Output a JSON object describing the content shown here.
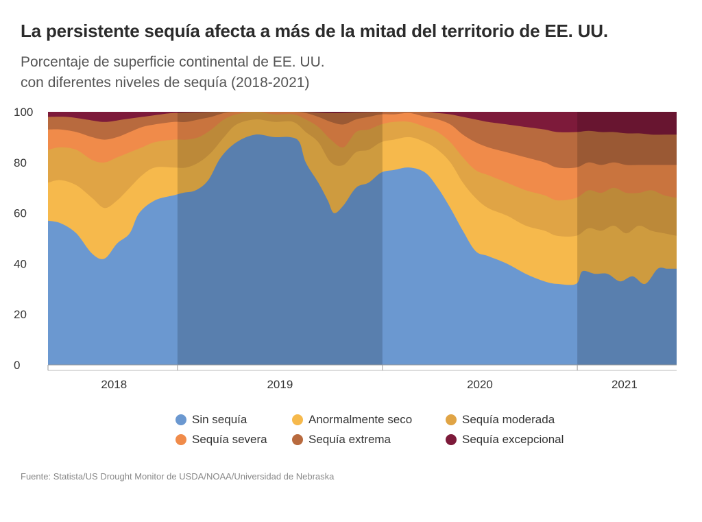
{
  "header": {
    "title": "La persistente sequía afecta a más de la mitad del territorio de EE. UU.",
    "subtitle_line1": "Porcentaje de superficie continental de EE. UU.",
    "subtitle_line2": "con diferentes niveles de sequía (2018-2021)"
  },
  "footer": {
    "source": "Fuente: Statista/US Drought Monitor de USDA/NOAA/Universidad de Nebraska"
  },
  "chart_data": {
    "type": "area",
    "stacking": "cumulative",
    "x_label": "",
    "y_label": "",
    "ylim": [
      0,
      100
    ],
    "y_ticks": [
      "0",
      "20",
      "40",
      "60",
      "80",
      "100"
    ],
    "x_ticks": [
      {
        "label": "2018",
        "t": 0.105
      },
      {
        "label": "2019",
        "t": 0.369
      },
      {
        "label": "2020",
        "t": 0.687
      },
      {
        "label": "2021",
        "t": 0.917
      }
    ],
    "year_bands": [
      {
        "year": "2018",
        "start": 0.0,
        "end": 0.206
      },
      {
        "year": "2019",
        "start": 0.206,
        "end": 0.532
      },
      {
        "year": "2020",
        "start": 0.532,
        "end": 0.842
      },
      {
        "year": "2021",
        "start": 0.842,
        "end": 1.0
      }
    ],
    "legend_position": "bottom",
    "series": [
      {
        "name": "Sin sequía",
        "color": "#6b98d0",
        "values": [
          [
            0,
            57
          ],
          [
            0.02,
            56
          ],
          [
            0.045,
            52
          ],
          [
            0.07,
            44
          ],
          [
            0.09,
            42
          ],
          [
            0.11,
            48
          ],
          [
            0.13,
            52
          ],
          [
            0.145,
            60
          ],
          [
            0.17,
            65
          ],
          [
            0.2,
            67
          ],
          [
            0.215,
            68
          ],
          [
            0.235,
            69
          ],
          [
            0.255,
            73
          ],
          [
            0.275,
            82
          ],
          [
            0.3,
            88
          ],
          [
            0.33,
            91
          ],
          [
            0.36,
            90
          ],
          [
            0.385,
            90
          ],
          [
            0.4,
            88
          ],
          [
            0.41,
            80
          ],
          [
            0.43,
            72
          ],
          [
            0.445,
            65
          ],
          [
            0.455,
            60
          ],
          [
            0.47,
            63
          ],
          [
            0.49,
            70
          ],
          [
            0.51,
            72
          ],
          [
            0.53,
            76
          ],
          [
            0.55,
            77
          ],
          [
            0.575,
            78
          ],
          [
            0.6,
            76
          ],
          [
            0.62,
            70
          ],
          [
            0.64,
            62
          ],
          [
            0.66,
            53
          ],
          [
            0.68,
            45
          ],
          [
            0.7,
            43
          ],
          [
            0.73,
            40
          ],
          [
            0.76,
            36
          ],
          [
            0.79,
            33
          ],
          [
            0.81,
            32
          ],
          [
            0.84,
            32
          ],
          [
            0.85,
            37
          ],
          [
            0.87,
            36
          ],
          [
            0.89,
            36
          ],
          [
            0.91,
            33
          ],
          [
            0.93,
            35
          ],
          [
            0.95,
            32
          ],
          [
            0.97,
            38
          ],
          [
            0.985,
            38
          ],
          [
            1,
            38
          ]
        ]
      },
      {
        "name": "Anormalmente seco",
        "color": "#f6b94c",
        "values": [
          [
            0,
            72
          ],
          [
            0.02,
            73
          ],
          [
            0.045,
            71
          ],
          [
            0.07,
            66
          ],
          [
            0.09,
            62
          ],
          [
            0.11,
            65
          ],
          [
            0.13,
            70
          ],
          [
            0.15,
            75
          ],
          [
            0.17,
            78
          ],
          [
            0.2,
            78
          ],
          [
            0.22,
            78
          ],
          [
            0.24,
            80
          ],
          [
            0.26,
            84
          ],
          [
            0.28,
            90
          ],
          [
            0.3,
            95
          ],
          [
            0.33,
            97
          ],
          [
            0.36,
            96
          ],
          [
            0.39,
            96
          ],
          [
            0.41,
            92
          ],
          [
            0.43,
            88
          ],
          [
            0.45,
            80
          ],
          [
            0.47,
            79
          ],
          [
            0.49,
            84
          ],
          [
            0.51,
            85
          ],
          [
            0.53,
            88
          ],
          [
            0.55,
            89
          ],
          [
            0.575,
            90
          ],
          [
            0.6,
            88
          ],
          [
            0.62,
            85
          ],
          [
            0.64,
            80
          ],
          [
            0.66,
            72
          ],
          [
            0.68,
            66
          ],
          [
            0.7,
            62
          ],
          [
            0.73,
            59
          ],
          [
            0.76,
            55
          ],
          [
            0.79,
            53
          ],
          [
            0.81,
            51
          ],
          [
            0.84,
            51
          ],
          [
            0.86,
            54
          ],
          [
            0.88,
            53
          ],
          [
            0.9,
            55
          ],
          [
            0.92,
            52
          ],
          [
            0.94,
            55
          ],
          [
            0.96,
            53
          ],
          [
            0.98,
            52
          ],
          [
            1,
            51
          ]
        ]
      },
      {
        "name": "Sequía moderada",
        "color": "#e0a445",
        "values": [
          [
            0,
            85
          ],
          [
            0.02,
            86
          ],
          [
            0.045,
            85
          ],
          [
            0.07,
            81
          ],
          [
            0.09,
            80
          ],
          [
            0.11,
            82
          ],
          [
            0.13,
            84
          ],
          [
            0.15,
            86
          ],
          [
            0.17,
            88
          ],
          [
            0.2,
            89
          ],
          [
            0.22,
            89
          ],
          [
            0.24,
            90
          ],
          [
            0.26,
            93
          ],
          [
            0.28,
            97
          ],
          [
            0.3,
            99
          ],
          [
            0.33,
            100
          ],
          [
            0.36,
            99
          ],
          [
            0.39,
            99
          ],
          [
            0.41,
            97
          ],
          [
            0.43,
            94
          ],
          [
            0.45,
            89
          ],
          [
            0.47,
            86
          ],
          [
            0.49,
            92
          ],
          [
            0.51,
            93
          ],
          [
            0.53,
            95
          ],
          [
            0.55,
            96
          ],
          [
            0.575,
            96
          ],
          [
            0.6,
            94
          ],
          [
            0.62,
            92
          ],
          [
            0.64,
            88
          ],
          [
            0.66,
            82
          ],
          [
            0.68,
            77
          ],
          [
            0.7,
            75
          ],
          [
            0.73,
            72
          ],
          [
            0.76,
            69
          ],
          [
            0.79,
            67
          ],
          [
            0.81,
            65
          ],
          [
            0.84,
            66
          ],
          [
            0.86,
            69
          ],
          [
            0.88,
            68
          ],
          [
            0.9,
            70
          ],
          [
            0.92,
            68
          ],
          [
            0.94,
            68
          ],
          [
            0.96,
            69
          ],
          [
            0.98,
            67
          ],
          [
            1,
            66
          ]
        ]
      },
      {
        "name": "Sequía severa",
        "color": "#f08b4a",
        "values": [
          [
            0,
            93
          ],
          [
            0.02,
            93
          ],
          [
            0.045,
            92
          ],
          [
            0.07,
            90
          ],
          [
            0.09,
            89
          ],
          [
            0.11,
            90
          ],
          [
            0.13,
            92
          ],
          [
            0.15,
            94
          ],
          [
            0.17,
            95
          ],
          [
            0.2,
            96
          ],
          [
            0.22,
            96
          ],
          [
            0.24,
            97
          ],
          [
            0.26,
            98
          ],
          [
            0.28,
            99.5
          ],
          [
            0.3,
            100
          ],
          [
            0.33,
            100
          ],
          [
            0.36,
            100
          ],
          [
            0.39,
            100
          ],
          [
            0.41,
            99.5
          ],
          [
            0.43,
            98
          ],
          [
            0.45,
            96
          ],
          [
            0.47,
            95
          ],
          [
            0.49,
            97
          ],
          [
            0.51,
            98
          ],
          [
            0.53,
            99
          ],
          [
            0.55,
            99
          ],
          [
            0.575,
            99.5
          ],
          [
            0.6,
            98
          ],
          [
            0.62,
            97
          ],
          [
            0.64,
            95
          ],
          [
            0.66,
            91
          ],
          [
            0.68,
            88
          ],
          [
            0.7,
            86
          ],
          [
            0.73,
            84
          ],
          [
            0.76,
            82
          ],
          [
            0.79,
            80
          ],
          [
            0.81,
            78
          ],
          [
            0.84,
            78
          ],
          [
            0.86,
            80
          ],
          [
            0.88,
            79
          ],
          [
            0.9,
            80
          ],
          [
            0.92,
            79
          ],
          [
            0.94,
            79
          ],
          [
            0.96,
            79
          ],
          [
            0.98,
            79
          ],
          [
            1,
            79
          ]
        ]
      },
      {
        "name": "Sequía extrema",
        "color": "#b86a3e",
        "values": [
          [
            0,
            98
          ],
          [
            0.03,
            98
          ],
          [
            0.06,
            97
          ],
          [
            0.09,
            96
          ],
          [
            0.12,
            97
          ],
          [
            0.15,
            98
          ],
          [
            0.18,
            99
          ],
          [
            0.2,
            99.5
          ],
          [
            0.24,
            99.8
          ],
          [
            0.28,
            100
          ],
          [
            0.33,
            100
          ],
          [
            0.4,
            100
          ],
          [
            0.45,
            99.5
          ],
          [
            0.5,
            99.8
          ],
          [
            0.55,
            100
          ],
          [
            0.6,
            100
          ],
          [
            0.62,
            99.5
          ],
          [
            0.64,
            99
          ],
          [
            0.66,
            98
          ],
          [
            0.68,
            97
          ],
          [
            0.7,
            96
          ],
          [
            0.73,
            95
          ],
          [
            0.76,
            94
          ],
          [
            0.79,
            93
          ],
          [
            0.81,
            92
          ],
          [
            0.84,
            92
          ],
          [
            0.86,
            92.5
          ],
          [
            0.88,
            92
          ],
          [
            0.9,
            92
          ],
          [
            0.92,
            91.5
          ],
          [
            0.94,
            91.5
          ],
          [
            0.96,
            91
          ],
          [
            0.98,
            91
          ],
          [
            1,
            91
          ]
        ]
      },
      {
        "name": "Sequía excepcional",
        "color": "#7d1a3a",
        "values": [
          [
            0,
            100
          ],
          [
            1,
            100
          ]
        ]
      }
    ]
  }
}
